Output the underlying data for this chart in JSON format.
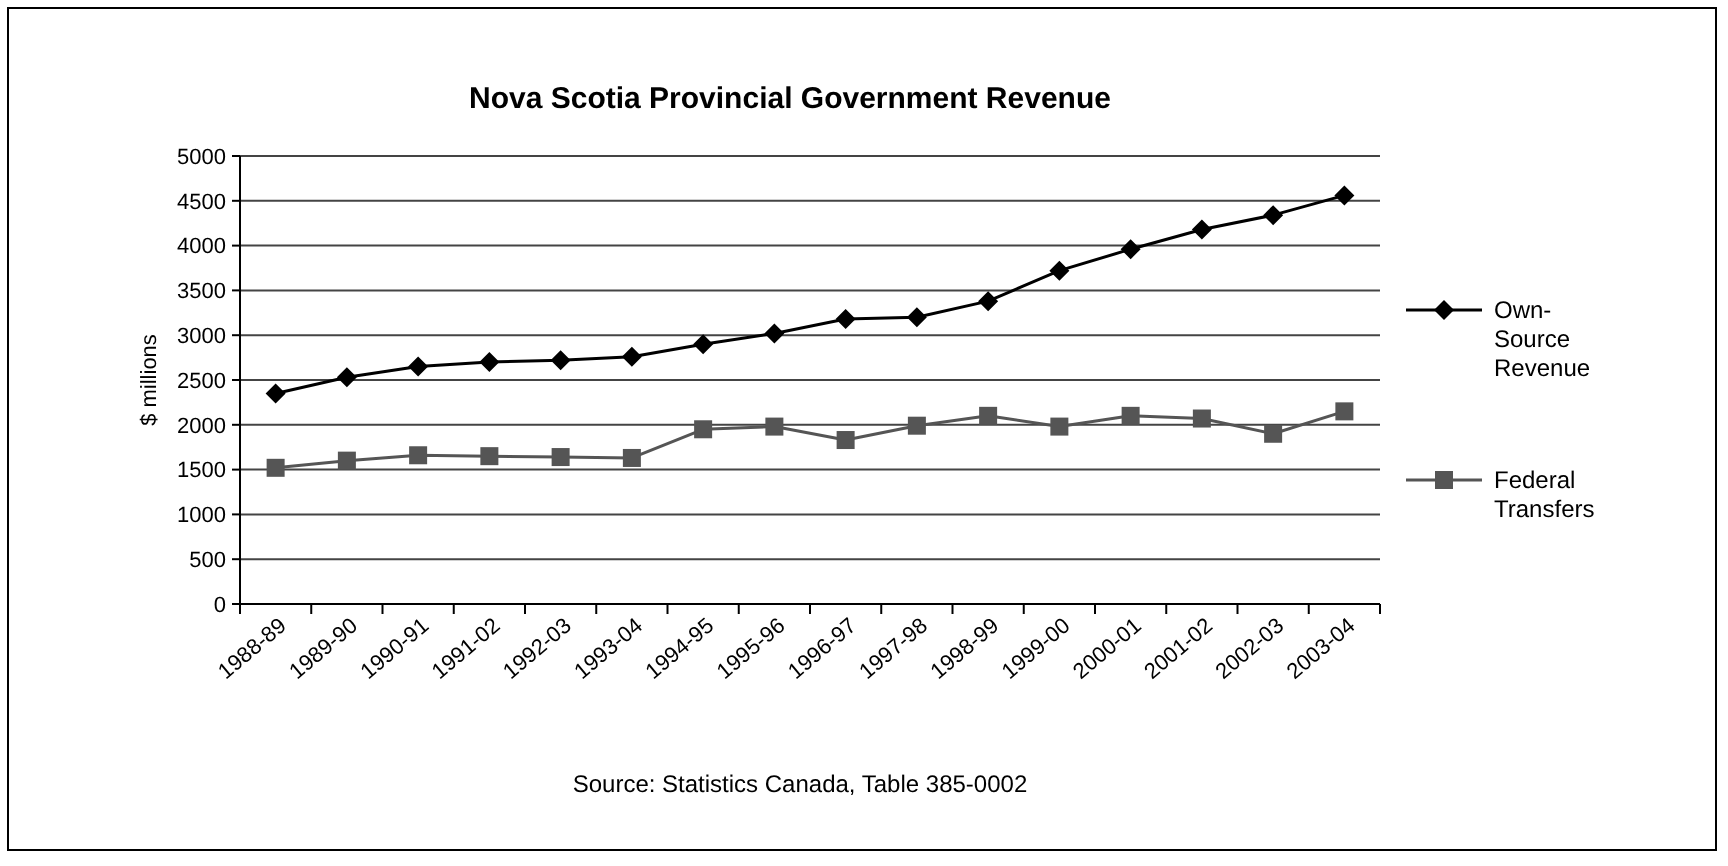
{
  "chart_data": {
    "type": "line",
    "title": "Nova Scotia Provincial Government Revenue",
    "ylabel": "$ millions",
    "categories": [
      "1988-89",
      "1989-90",
      "1990-91",
      "1991-02",
      "1992-03",
      "1993-04",
      "1994-95",
      "1995-96",
      "1996-97",
      "1997-98",
      "1998-99",
      "1999-00",
      "2000-01",
      "2001-02",
      "2002-03",
      "2003-04"
    ],
    "series": [
      {
        "name": "Own-Source Revenue",
        "color": "#000000",
        "marker": "diamond",
        "values": [
          2350,
          2530,
          2650,
          2700,
          2720,
          2760,
          2900,
          3020,
          3180,
          3200,
          3380,
          3720,
          3960,
          4180,
          4340,
          4560
        ]
      },
      {
        "name": "Federal Transfers",
        "color": "#555555",
        "marker": "square",
        "values": [
          1520,
          1600,
          1660,
          1650,
          1640,
          1630,
          1950,
          1980,
          1830,
          1990,
          2100,
          1980,
          2100,
          2070,
          1900,
          2150
        ]
      }
    ],
    "ylim": [
      0,
      5000
    ],
    "yticks": [
      0,
      500,
      1000,
      1500,
      2000,
      2500,
      3000,
      3500,
      4000,
      4500,
      5000
    ],
    "grid": "y",
    "legend": "right",
    "annotations": [
      "Source: Statistics Canada, Table 385-0002"
    ]
  }
}
